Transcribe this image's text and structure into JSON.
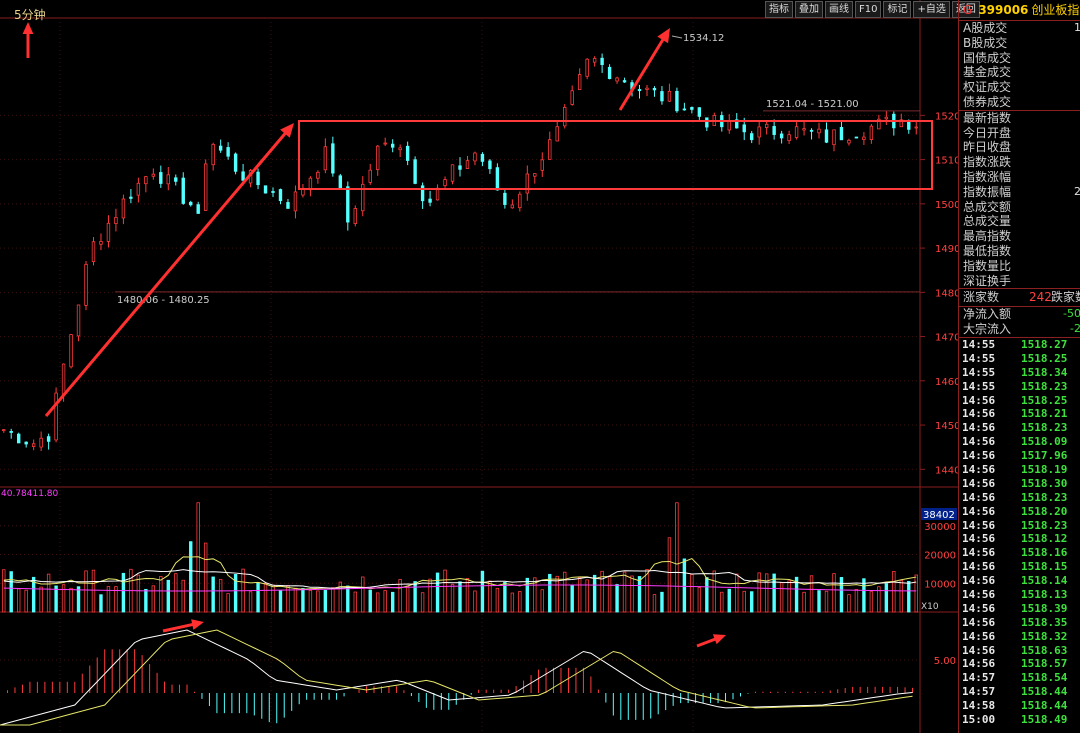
{
  "toolbar": {
    "buttons": [
      "指标",
      "叠加",
      "画线",
      "F10",
      "标记",
      "+自选",
      "返回"
    ]
  },
  "chart": {
    "period_label": "5分钟",
    "price_axis_labels": [
      "1520",
      "1510",
      "1500",
      "1490",
      "1480",
      "1470",
      "1460",
      "1450",
      "1440"
    ],
    "price_range": [
      1436,
      1542
    ],
    "volume_axis_labels": [
      "30000",
      "20000",
      "10000"
    ],
    "volume_current_label": "38402",
    "volume_legend": "40.78411.80",
    "multiplier_label": "X10",
    "macd_axis_label": "5.00",
    "annotations": {
      "high_label": "1534.12",
      "low_pair_label": "1480.06 - 1480.25",
      "upper_pair_label": "1521.04 - 1521.00"
    },
    "colors": {
      "up": "#ff3b3b",
      "down": "#54ffff",
      "arrow": "#ff3030",
      "box": "#ff3a3a",
      "ma_yellow": "#e6e66a",
      "ma_white": "#ffffff",
      "ma_purple": "#ff3cff",
      "grid": "#8a1e1e",
      "axis_text": "#ff4040"
    }
  },
  "panel": {
    "header": {
      "badge": "G",
      "code": "399006",
      "name": "创业板指"
    },
    "stats": [
      {
        "label": "A股成交",
        "value": "1"
      },
      {
        "label": "B股成交",
        "value": ""
      },
      {
        "label": "国债成交",
        "value": ""
      },
      {
        "label": "基金成交",
        "value": ""
      },
      {
        "label": "权证成交",
        "value": ""
      },
      {
        "label": "债券成交",
        "value": ""
      }
    ],
    "index_stats": [
      {
        "label": "最新指数",
        "value": ""
      },
      {
        "label": "今日开盘",
        "value": ""
      },
      {
        "label": "昨日收盘",
        "value": ""
      },
      {
        "label": "指数涨跌",
        "value": ""
      },
      {
        "label": "指数涨幅",
        "value": ""
      },
      {
        "label": "指数振幅",
        "value": "2"
      },
      {
        "label": "总成交额",
        "value": ""
      },
      {
        "label": "总成交量",
        "value": ""
      },
      {
        "label": "最高指数",
        "value": ""
      },
      {
        "label": "最低指数",
        "value": ""
      },
      {
        "label": "指数量比",
        "value": ""
      },
      {
        "label": "深证换手",
        "value": ""
      }
    ],
    "updown": {
      "label": "涨家数",
      "up_count": "242",
      "down_label": "跌家数"
    },
    "flows": [
      {
        "label": "净流入额",
        "value": "-50"
      },
      {
        "label": "大宗流入",
        "value": "-2"
      }
    ],
    "ticks": [
      {
        "time": "14:55",
        "price": "1518.27"
      },
      {
        "time": "14:55",
        "price": "1518.25"
      },
      {
        "time": "14:55",
        "price": "1518.34"
      },
      {
        "time": "14:55",
        "price": "1518.23"
      },
      {
        "time": "14:56",
        "price": "1518.25"
      },
      {
        "time": "14:56",
        "price": "1518.21"
      },
      {
        "time": "14:56",
        "price": "1518.23"
      },
      {
        "time": "14:56",
        "price": "1518.09"
      },
      {
        "time": "14:56",
        "price": "1517.96"
      },
      {
        "time": "14:56",
        "price": "1518.19"
      },
      {
        "time": "14:56",
        "price": "1518.30"
      },
      {
        "time": "14:56",
        "price": "1518.23"
      },
      {
        "time": "14:56",
        "price": "1518.20"
      },
      {
        "time": "14:56",
        "price": "1518.23"
      },
      {
        "time": "14:56",
        "price": "1518.12"
      },
      {
        "time": "14:56",
        "price": "1518.16"
      },
      {
        "time": "14:56",
        "price": "1518.15"
      },
      {
        "time": "14:56",
        "price": "1518.14"
      },
      {
        "time": "14:56",
        "price": "1518.13"
      },
      {
        "time": "14:56",
        "price": "1518.39"
      },
      {
        "time": "14:56",
        "price": "1518.35"
      },
      {
        "time": "14:56",
        "price": "1518.32"
      },
      {
        "time": "14:56",
        "price": "1518.63"
      },
      {
        "time": "14:56",
        "price": "1518.57"
      },
      {
        "time": "14:57",
        "price": "1518.54"
      },
      {
        "time": "14:57",
        "price": "1518.44"
      },
      {
        "time": "14:58",
        "price": "1518.44"
      },
      {
        "time": "15:00",
        "price": "1518.49"
      }
    ]
  }
}
